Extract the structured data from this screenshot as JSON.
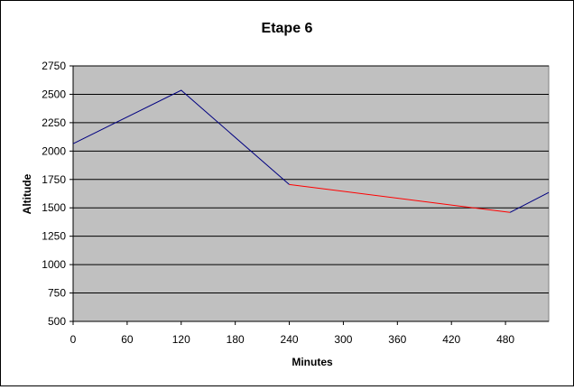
{
  "chart_data": {
    "type": "line",
    "title": "Etape 6",
    "xlabel": "Minutes",
    "ylabel": "Altitude",
    "xlim": [
      0,
      528
    ],
    "ylim": [
      500,
      2750
    ],
    "x_ticks": [
      "0",
      "60",
      "120",
      "180",
      "240",
      "300",
      "360",
      "420",
      "480"
    ],
    "y_ticks": [
      "500",
      "750",
      "1000",
      "1250",
      "1500",
      "1750",
      "2000",
      "2250",
      "2500",
      "2750"
    ],
    "grid": "horizontal",
    "legend": "none",
    "plot_background": "#c0c0c0",
    "series": [
      {
        "color": "#000080",
        "points": [
          [
            0,
            2065
          ],
          [
            120,
            2535
          ],
          [
            240,
            1705
          ]
        ]
      },
      {
        "color": "#ff0000",
        "points": [
          [
            240,
            1705
          ],
          [
            485,
            1460
          ]
        ]
      },
      {
        "color": "#000080",
        "points": [
          [
            485,
            1460
          ],
          [
            528,
            1635
          ]
        ]
      }
    ]
  }
}
